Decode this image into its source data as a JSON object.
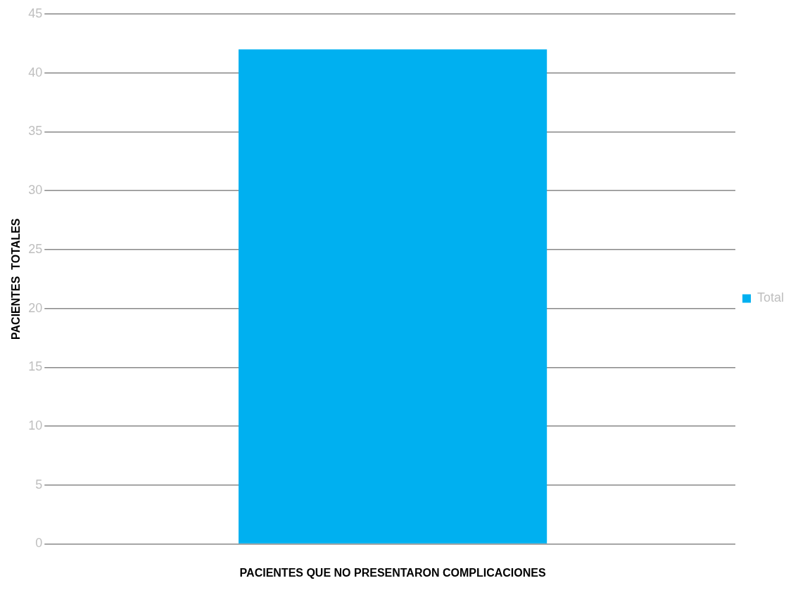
{
  "chart_data": {
    "type": "bar",
    "xlabel": "PACIENTES QUE NO PRESENTARON COMPLICACIONES",
    "ylabel": "PACIENTES  TOTALES",
    "categories": [
      null
    ],
    "series": [
      {
        "name": "Total",
        "color": "#00b0f0",
        "values": [
          42
        ]
      }
    ],
    "ylim": [
      0,
      45
    ],
    "yticks": [
      0,
      5,
      10,
      15,
      20,
      25,
      30,
      35,
      40,
      45
    ],
    "grid": "y",
    "legend": "right"
  }
}
